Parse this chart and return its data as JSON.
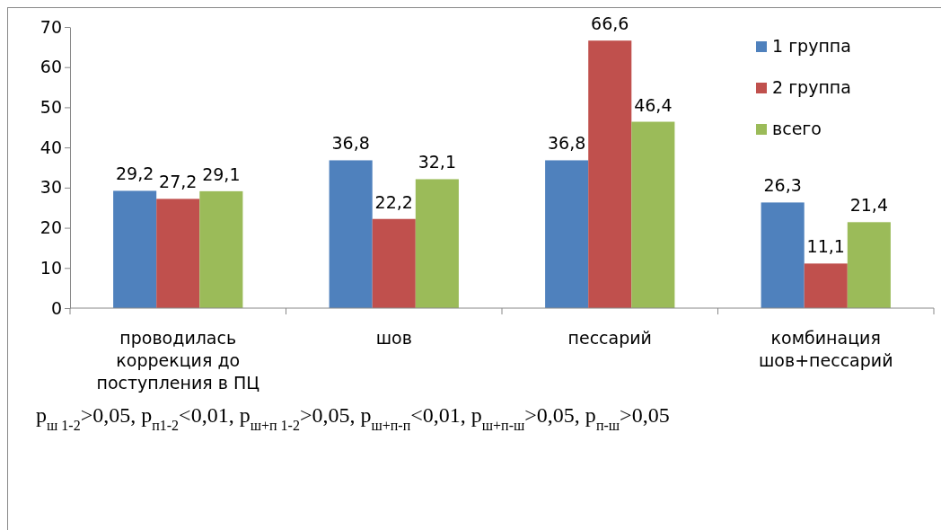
{
  "chart_data": {
    "type": "bar",
    "categories": [
      "проводилась коррекция до поступления в ПЦ",
      "шов",
      "пессарий",
      "комбинация шов+пессарий"
    ],
    "series": [
      {
        "name": "1 группа",
        "color": "#4f81bd",
        "values": [
          29.2,
          36.8,
          36.8,
          26.3
        ],
        "value_labels": [
          "29,2",
          "36,8",
          "36,8",
          "26,3"
        ]
      },
      {
        "name": "2 группа",
        "color": "#c0504d",
        "values": [
          27.2,
          22.2,
          66.6,
          11.1
        ],
        "value_labels": [
          "27,2",
          "22,2",
          "66,6",
          "11,1"
        ]
      },
      {
        "name": "всего",
        "color": "#9bbb59",
        "values": [
          29.1,
          32.1,
          46.4,
          21.4
        ],
        "value_labels": [
          "29,1",
          "32,1",
          "46,4",
          "21,4"
        ]
      }
    ],
    "ylim": [
      0,
      70
    ],
    "yticks": [
      0,
      10,
      20,
      30,
      40,
      50,
      60,
      70
    ],
    "grid": false,
    "legend": "top right",
    "annotations": [
      "p$_{ш 1-2}$>0,05, p$_{п1-2}$<0,01, p$_{ш+п 1-2}$>0,05, p$_{ш+п-п}$<0,01, p$_{ш+п-ш}$>0,05, p$_{п-ш}$>0,05"
    ]
  }
}
